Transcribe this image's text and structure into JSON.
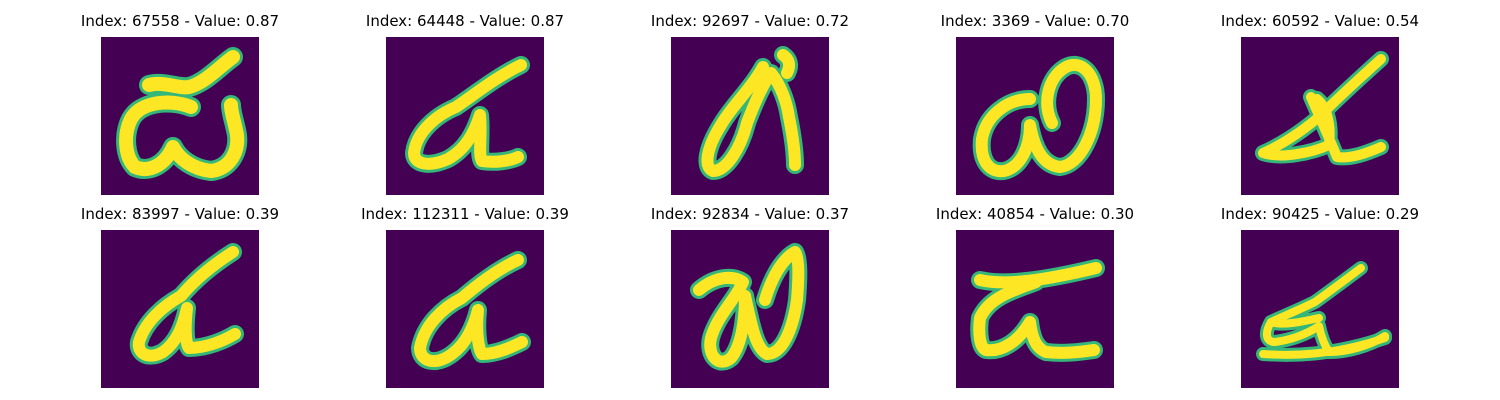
{
  "colors": {
    "background": "#440154",
    "stroke_main": "#fde725",
    "stroke_edge": "#35b779"
  },
  "panels": [
    {
      "title": "Index: 67558 - Value: 0.87",
      "glyph": "handwritten-character"
    },
    {
      "title": "Index: 64448 - Value: 0.87",
      "glyph": "handwritten-character"
    },
    {
      "title": "Index: 92697 - Value: 0.72",
      "glyph": "handwritten-character"
    },
    {
      "title": "Index: 3369 - Value: 0.70",
      "glyph": "handwritten-character"
    },
    {
      "title": "Index: 60592 - Value: 0.54",
      "glyph": "handwritten-character"
    },
    {
      "title": "Index: 83997 - Value: 0.39",
      "glyph": "handwritten-character"
    },
    {
      "title": "Index: 112311 - Value: 0.39",
      "glyph": "handwritten-character"
    },
    {
      "title": "Index: 92834 - Value: 0.37",
      "glyph": "handwritten-character"
    },
    {
      "title": "Index: 40854 - Value: 0.30",
      "glyph": "handwritten-character"
    },
    {
      "title": "Index: 90425 - Value: 0.29",
      "glyph": "handwritten-character"
    }
  ]
}
